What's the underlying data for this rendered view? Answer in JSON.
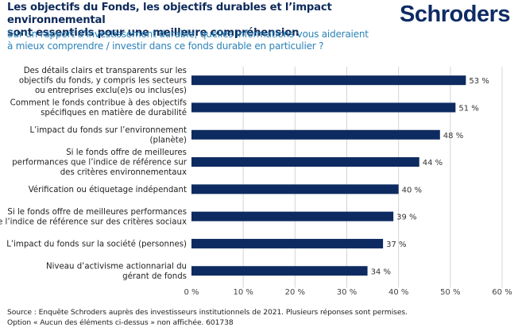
{
  "header": {
    "title_lines": [
      "Les objectifs du Fonds, les objectifs durables et l’impact environnemental",
      "sont essentiels pour une meilleure compréhension"
    ],
    "subtitle_lines": [
      "Sur un rapport d’investissement durable, quelles informations vous aideraient",
      "à mieux comprendre / investir dans ce fonds durable en particulier ?"
    ],
    "logo": "Schroders"
  },
  "footer": {
    "lines": [
      "Source : Enquête Schroders auprès des investisseurs institutionnels de 2021. Plusieurs réponses sont permises.",
      "Option « Aucun des éléments ci-dessus » non affichée. 601738"
    ]
  },
  "colors": {
    "bar": "#0d2b60",
    "title": "#0d2a5a",
    "subtitle": "#2b82b8",
    "grid": "#d4d4d4"
  },
  "chart_data": {
    "type": "bar",
    "orientation": "horizontal",
    "title": "Les objectifs du Fonds, les objectifs durables et l’impact environnemental sont essentiels pour une meilleure compréhension",
    "subtitle": "Sur un rapport d’investissement durable, quelles informations vous aideraient à mieux comprendre / investir dans ce fonds durable en particulier ?",
    "categories": [
      [
        "Des détails clairs et transparents sur les",
        "objectifs du fonds, y compris les secteurs",
        "ou entreprises exclu(e)s ou inclus(es)"
      ],
      [
        "Comment le fonds contribue à des objectifs",
        "spécifiques en matière de durabilité"
      ],
      [
        "L’impact du fonds sur l’environnement",
        "(planète)"
      ],
      [
        "Si le fonds offre de meilleures",
        "performances que l’indice de référence sur",
        "des critères environnementaux"
      ],
      [
        "Vérification ou étiquetage indépendant"
      ],
      [
        "Si le fonds offre de meilleures performances",
        "que l’indice de référence sur des critères sociaux"
      ],
      [
        "L’impact du fonds sur la société (personnes)"
      ],
      [
        "Niveau d’activisme actionnarial du",
        "gérant de fonds"
      ]
    ],
    "values": [
      53,
      51,
      48,
      44,
      40,
      39,
      37,
      34
    ],
    "value_labels": [
      "53 %",
      "51 %",
      "48 %",
      "44 %",
      "40 %",
      "39 %",
      "37 %",
      "34 %"
    ],
    "xlabel": "",
    "ylabel": "",
    "xlim": [
      0,
      60
    ],
    "xticks": [
      0,
      10,
      20,
      30,
      40,
      50,
      60
    ],
    "xtick_labels": [
      "0 %",
      "10 %",
      "20 %",
      "30 %",
      "40 %",
      "50 %",
      "60 %"
    ],
    "grid": "vertical",
    "legend": "none"
  }
}
